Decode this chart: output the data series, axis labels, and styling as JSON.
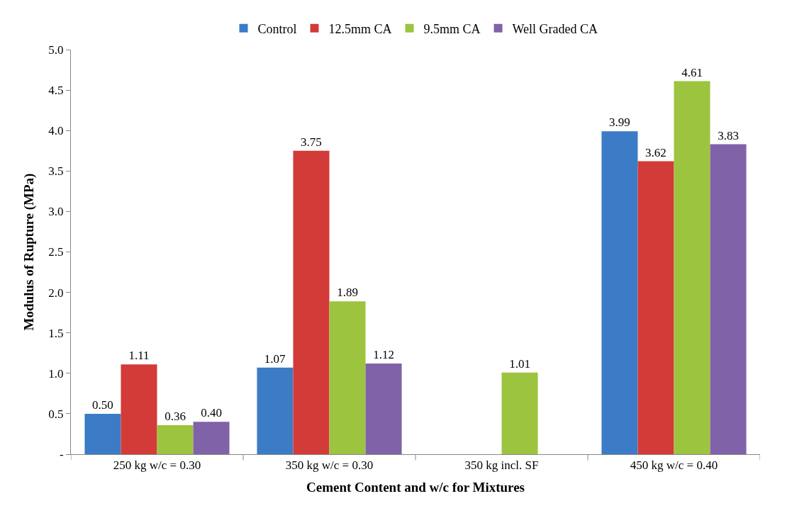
{
  "chart_data": {
    "type": "bar",
    "xlabel": "Cement Content and w/c for Mixtures",
    "ylabel": "Modulus of Rupture (MPa)",
    "categories": [
      "250 kg w/c = 0.30",
      "350 kg w/c = 0.30",
      "350 kg incl. SF",
      "450 kg w/c = 0.40"
    ],
    "series": [
      {
        "name": "Control",
        "color": "#3c7bc6",
        "values": [
          0.5,
          1.07,
          null,
          3.99
        ],
        "value_labels": [
          "0.50",
          "1.07",
          null,
          "3.99"
        ]
      },
      {
        "name": "12.5mm CA",
        "color": "#d23b38",
        "values": [
          1.11,
          3.75,
          null,
          3.62
        ],
        "value_labels": [
          "1.11",
          "3.75",
          null,
          "3.62"
        ]
      },
      {
        "name": "9.5mm CA",
        "color": "#9cc43e",
        "values": [
          0.36,
          1.89,
          1.01,
          4.61
        ],
        "value_labels": [
          "0.36",
          "1.89",
          "1.01",
          "4.61"
        ]
      },
      {
        "name": "Well Graded CA",
        "color": "#8062a8",
        "values": [
          0.4,
          1.12,
          null,
          3.83
        ],
        "value_labels": [
          "0.40",
          "1.12",
          null,
          "3.83"
        ]
      }
    ],
    "ylim": [
      0,
      5
    ],
    "yticks": [
      {
        "value": 0,
        "label": "-"
      },
      {
        "value": 0.5,
        "label": "0.5"
      },
      {
        "value": 1,
        "label": "1.0"
      },
      {
        "value": 1.5,
        "label": "1.5"
      },
      {
        "value": 2,
        "label": "2.0"
      },
      {
        "value": 2.5,
        "label": "2.5"
      },
      {
        "value": 3,
        "label": "3.0"
      },
      {
        "value": 3.5,
        "label": "3.5"
      },
      {
        "value": 4,
        "label": "4.0"
      },
      {
        "value": 4.5,
        "label": "4.5"
      },
      {
        "value": 5,
        "label": "5.0"
      }
    ],
    "legend": "top"
  }
}
